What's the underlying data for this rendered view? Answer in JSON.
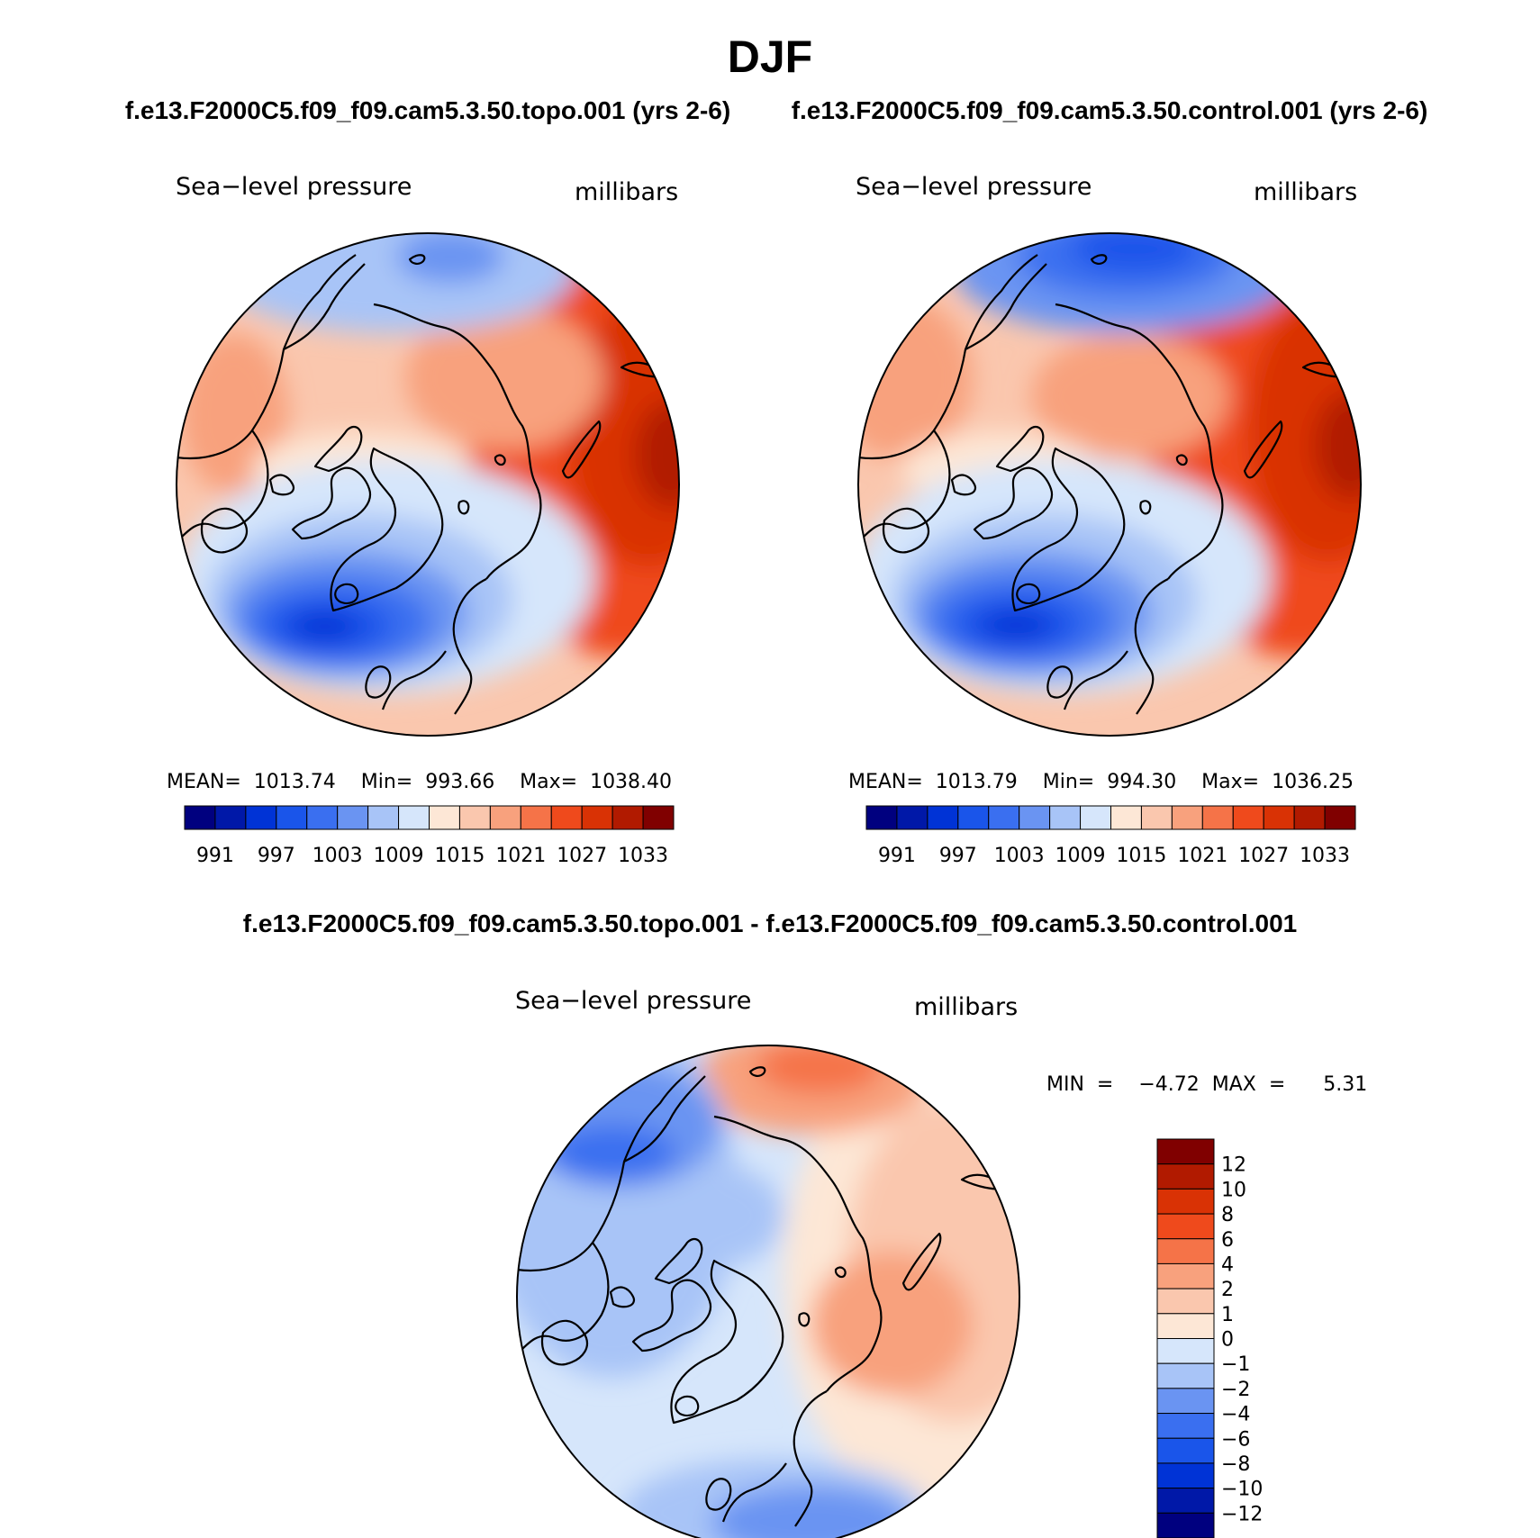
{
  "figure": {
    "title": "DJF",
    "case_a": "f.e13.F2000C5.f09_f09.cam5.3.50.topo.001 (yrs 2-6)",
    "case_b": "f.e13.F2000C5.f09_f09.cam5.3.50.control.001 (yrs 2-6)",
    "diff_title": "f.e13.F2000C5.f09_f09.cam5.3.50.topo.001 - f.e13.F2000C5.f09_f09.cam5.3.50.control.001"
  },
  "panels": {
    "topo": {
      "variable": "Sea−level pressure",
      "units": "millibars",
      "stats": "MEAN=  1013.74    Min=  993.66    Max=  1038.40"
    },
    "control": {
      "variable": "Sea−level pressure",
      "units": "millibars",
      "stats": "MEAN=  1013.79    Min=  994.30    Max=  1036.25"
    },
    "diff": {
      "variable": "Sea−level pressure",
      "units": "millibars",
      "stats": "MIN  =    −4.72  MAX  =      5.31"
    }
  },
  "abs_colorbar": {
    "colors": [
      "#00007f",
      "#0018a8",
      "#0033d6",
      "#1a55ea",
      "#3a6ff0",
      "#6a94f2",
      "#a8c4f7",
      "#d6e6fb",
      "#fde7d6",
      "#fac7ae",
      "#f8a17d",
      "#f57348",
      "#ef4a1c",
      "#d93205",
      "#b11a00",
      "#800000"
    ],
    "tick_labels": [
      "991",
      "997",
      "1003",
      "1009",
      "1015",
      "1021",
      "1027",
      "1033"
    ]
  },
  "diff_colorbar": {
    "colors": [
      "#800000",
      "#b11a00",
      "#d93205",
      "#ef4a1c",
      "#f57348",
      "#f8a17d",
      "#fac7ae",
      "#fde7d6",
      "#d6e6fb",
      "#a8c4f7",
      "#6a94f2",
      "#3a6ff0",
      "#1a55ea",
      "#0033d6",
      "#0018a8",
      "#00007f"
    ],
    "tick_labels": [
      "12",
      "10",
      "8",
      "6",
      "4",
      "2",
      "1",
      "0",
      "−1",
      "−2",
      "−4",
      "−6",
      "−8",
      "−10",
      "−12"
    ]
  }
}
